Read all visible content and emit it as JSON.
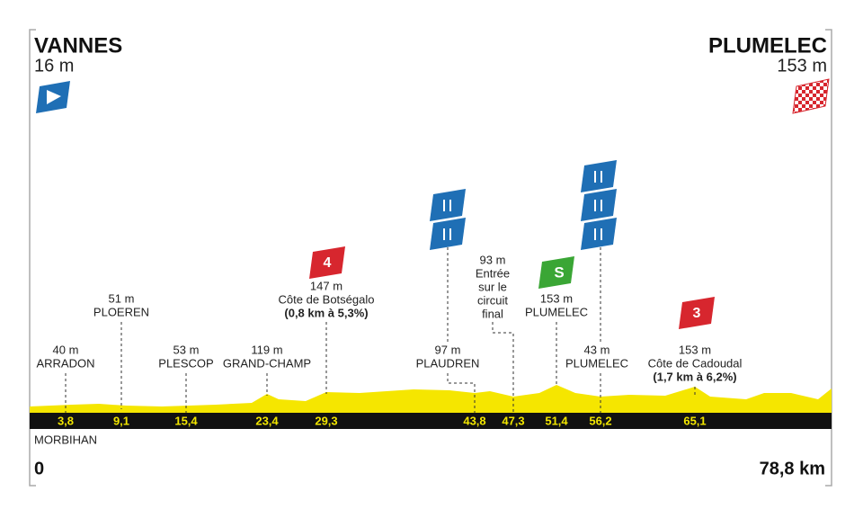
{
  "start": {
    "name": "VANNES",
    "altitude": "16 m"
  },
  "finish": {
    "name": "PLUMELEC",
    "altitude": "153 m"
  },
  "region": "MORBIHAN",
  "distance_start": "0",
  "distance_end": "78,8 km",
  "points": [
    {
      "km": "3,8",
      "lines": [
        "40 m",
        "ARRADON"
      ]
    },
    {
      "km": "9,1",
      "lines": [
        "51 m",
        "PLOEREN"
      ]
    },
    {
      "km": "15,4",
      "lines": [
        "53 m",
        "PLESCOP"
      ]
    },
    {
      "km": "23,4",
      "lines": [
        "119 m",
        "GRAND-CHAMP"
      ]
    },
    {
      "km": "29,3",
      "lines": [
        "147 m",
        "Côte de Botségalo"
      ],
      "detail": "(0,8 km à 5,3%)",
      "climb_category": "4"
    },
    {
      "km": "43,8",
      "lines": [
        "97 m",
        "PLAUDREN"
      ]
    },
    {
      "km": "47,3",
      "lines": [
        "93 m",
        "Entrée",
        "sur le",
        "circuit",
        "final"
      ]
    },
    {
      "km": "51,4",
      "lines": [
        "153 m",
        "PLUMELEC"
      ],
      "sprint": "S"
    },
    {
      "km": "56,2",
      "lines": [
        "43 m",
        "PLUMELEC"
      ]
    },
    {
      "km": "65,1",
      "lines": [
        "153 m",
        "Côte de Cadoudal"
      ],
      "detail": "(1,7 km à 6,2%)",
      "climb_category": "3"
    }
  ]
}
